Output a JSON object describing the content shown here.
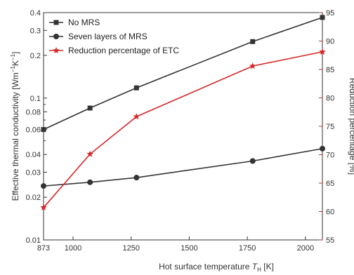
{
  "chart_data": {
    "type": "line",
    "xlabel": "Hot surface temperature T_H [K]",
    "ylabel_left": "Effective thermal conductivity [Wm⁻¹K⁻¹]",
    "ylabel_right": "Reduction percentage [%]",
    "x_ticks": [
      "873",
      "1000",
      "1250",
      "1500",
      "1750",
      "2000"
    ],
    "y_left_ticks": [
      "0.01",
      "0.02",
      "0.03",
      "0.04",
      "0.06",
      "0.08",
      "0.1",
      "0.2",
      "0.3",
      "0.4"
    ],
    "y_right_ticks": [
      "55",
      "60",
      "65",
      "70",
      "75",
      "80",
      "85",
      "90",
      "95"
    ],
    "xlim": [
      873,
      2073
    ],
    "ylim_left": [
      0.01,
      0.4
    ],
    "ylim_left_scale": "log",
    "ylim_right": [
      55,
      95
    ],
    "legend_position": "top-left",
    "grid": false,
    "series": [
      {
        "name": "No MRS",
        "axis": "left",
        "color": "#333333",
        "marker": "square",
        "x": [
          873,
          1073,
          1273,
          1773,
          2073
        ],
        "y": [
          0.06,
          0.085,
          0.118,
          0.25,
          0.37
        ]
      },
      {
        "name": "Seven layers of MRS",
        "axis": "left",
        "color": "#333333",
        "marker": "circle",
        "x": [
          873,
          1073,
          1273,
          1773,
          2073
        ],
        "y": [
          0.024,
          0.0255,
          0.0275,
          0.036,
          0.044
        ]
      },
      {
        "name": "Reduction percentage of ETC",
        "axis": "right",
        "color": "#d62728",
        "marker": "star",
        "x": [
          873,
          1073,
          1273,
          1773,
          2073
        ],
        "y": [
          60.7,
          70.1,
          76.7,
          85.6,
          88.1
        ]
      }
    ]
  }
}
